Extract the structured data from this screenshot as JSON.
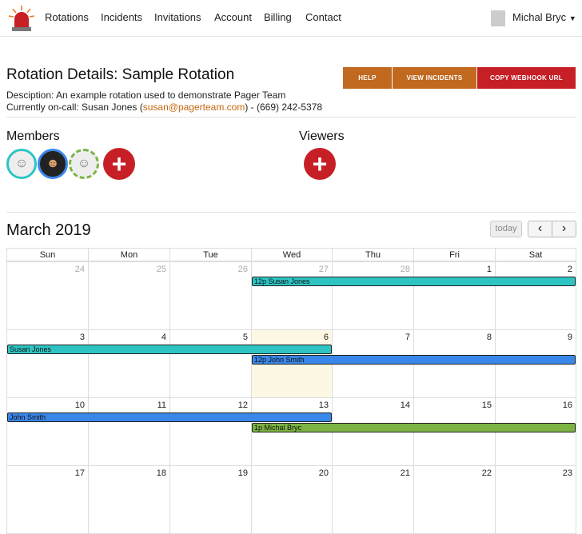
{
  "nav": {
    "links": [
      "Rotations",
      "Incidents",
      "Invitations",
      "Account",
      "Billing",
      "Contact"
    ],
    "user": "Michal Bryc"
  },
  "page": {
    "title": "Rotation Details: Sample Rotation",
    "description": "Desciption: An example rotation used to demonstrate Pager Team",
    "oncall_prefix": "Currently on-call: Susan Jones (",
    "oncall_email": "susan@pagerteam.com",
    "oncall_suffix": ") - (669) 242-5378",
    "buttons": {
      "help": "HELP",
      "view_incidents": "VIEW INCIDENTS",
      "copy_webhook": "COPY WEBHOOK URL"
    },
    "members_heading": "Members",
    "viewers_heading": "Viewers"
  },
  "colors": {
    "accent": "#c0691f",
    "danger": "#c62026",
    "susan": "#2ec4c4",
    "john": "#3a87ea",
    "michal": "#7cb342",
    "today": "#fcf8e3"
  },
  "calendar": {
    "title": "March 2019",
    "today_label": "today",
    "prev": "‹",
    "next": "›",
    "weekdays": [
      "Sun",
      "Mon",
      "Tue",
      "Wed",
      "Thu",
      "Fri",
      "Sat"
    ],
    "weeks": [
      [
        "24",
        "25",
        "26",
        "27",
        "28",
        "1",
        "2"
      ],
      [
        "3",
        "4",
        "5",
        "6",
        "7",
        "8",
        "9"
      ],
      [
        "10",
        "11",
        "12",
        "13",
        "14",
        "15",
        "16"
      ],
      [
        "17",
        "18",
        "19",
        "20",
        "21",
        "22",
        "23"
      ]
    ],
    "events": [
      {
        "label": "12p Susan Jones",
        "week": 0,
        "start": 3,
        "end": 7,
        "row": 0,
        "color": "#2ec4c4"
      },
      {
        "label": "Susan Jones",
        "week": 1,
        "start": 0,
        "end": 4,
        "row": 0,
        "color": "#2ec4c4"
      },
      {
        "label": "12p John Smith",
        "week": 1,
        "start": 3,
        "end": 7,
        "row": 1,
        "color": "#3a87ea"
      },
      {
        "label": "John Smith",
        "week": 2,
        "start": 0,
        "end": 4,
        "row": 0,
        "color": "#3a87ea"
      },
      {
        "label": "1p Michal Bryc",
        "week": 2,
        "start": 3,
        "end": 7,
        "row": 1,
        "color": "#7cb342"
      }
    ]
  }
}
